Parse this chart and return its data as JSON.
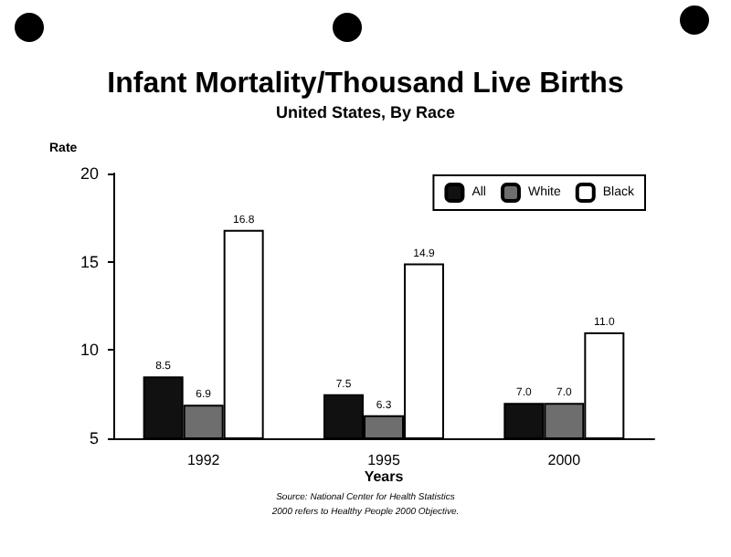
{
  "chart_data": {
    "type": "bar",
    "title": "Infant Mortality/Thousand Live Births",
    "subtitle": "United States, By Race",
    "xlabel": "Years",
    "ylabel": "Rate",
    "categories": [
      "1992",
      "1995",
      "2000"
    ],
    "series": [
      {
        "name": "All",
        "color": "#111111",
        "values": [
          8.5,
          7.5,
          7.0
        ],
        "value_labels": [
          "8.5",
          "7.5",
          "7.0"
        ]
      },
      {
        "name": "White",
        "color": "#6e6e6e",
        "values": [
          6.9,
          6.3,
          7.0
        ],
        "value_labels": [
          "6.9",
          "6.3",
          "7.0"
        ]
      },
      {
        "name": "Black",
        "color": "#ffffff",
        "values": [
          16.8,
          14.9,
          11.0
        ],
        "value_labels": [
          "16.8",
          "14.9",
          "11.0"
        ]
      }
    ],
    "ylim": [
      5,
      20
    ],
    "yticks": [
      5,
      10,
      15,
      20
    ],
    "grid": false,
    "legend": "top right",
    "annotations": [
      "Source: National Center for Health Statistics",
      "2000 refers to Healthy People 2000 Objective."
    ]
  }
}
